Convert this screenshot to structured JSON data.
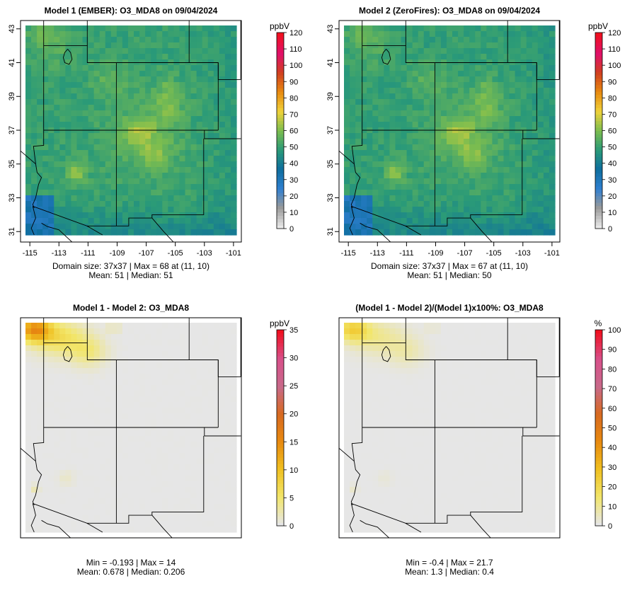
{
  "chart_data": [
    {
      "type": "heatmap",
      "title": "Model 1 (EMBER): O3_MDA8 on 09/04/2024",
      "x_ticks": [
        "-115",
        "-113",
        "-111",
        "-109",
        "-107",
        "-105",
        "-103",
        "-101"
      ],
      "y_ticks": [
        "31",
        "33",
        "35",
        "37",
        "39",
        "41",
        "43"
      ],
      "xlim": [
        -115.3,
        -100.8
      ],
      "ylim": [
        30.8,
        43.2
      ],
      "colorbar": {
        "unit": "ppbV",
        "min": 0,
        "max": 120,
        "ticks": [
          "0",
          "10",
          "20",
          "30",
          "40",
          "50",
          "60",
          "70",
          "80",
          "90",
          "100",
          "110",
          "120"
        ]
      },
      "grid": [
        37,
        37
      ],
      "stats": {
        "domain_size": "37x37",
        "max": 68,
        "max_at": "(11, 10)",
        "mean": 51,
        "median": 51
      },
      "caption_line1": "Domain size: 37x37 | Max = 68 at (11, 10)",
      "caption_line2": "Mean: 51 |  Median: 51",
      "field": "ozone"
    },
    {
      "type": "heatmap",
      "title": "Model 2 (ZeroFires): O3_MDA8 on 09/04/2024",
      "x_ticks": [
        "-115",
        "-113",
        "-111",
        "-109",
        "-107",
        "-105",
        "-103",
        "-101"
      ],
      "y_ticks": [
        "31",
        "33",
        "35",
        "37",
        "39",
        "41",
        "43"
      ],
      "xlim": [
        -115.3,
        -100.8
      ],
      "ylim": [
        30.8,
        43.2
      ],
      "colorbar": {
        "unit": "ppbV",
        "min": 0,
        "max": 120,
        "ticks": [
          "0",
          "10",
          "20",
          "30",
          "40",
          "50",
          "60",
          "70",
          "80",
          "90",
          "100",
          "110",
          "120"
        ]
      },
      "grid": [
        37,
        37
      ],
      "stats": {
        "domain_size": "37x37",
        "max": 67,
        "max_at": "(11, 10)",
        "mean": 51,
        "median": 50
      },
      "caption_line1": "Domain size: 37x37 | Max = 67 at (11, 10)",
      "caption_line2": "Mean: 51 |  Median: 50",
      "field": "ozone"
    },
    {
      "type": "heatmap",
      "title": "Model 1 - Model 2: O3_MDA8",
      "x_ticks": [],
      "y_ticks": [],
      "xlim": [
        -115.3,
        -100.8
      ],
      "ylim": [
        30.8,
        43.2
      ],
      "colorbar": {
        "unit": "ppbV",
        "min": 0,
        "max": 35,
        "ticks": [
          "0",
          "5",
          "10",
          "15",
          "20",
          "25",
          "30",
          "35"
        ]
      },
      "grid": [
        37,
        37
      ],
      "stats": {
        "min": -0.193,
        "max": 14,
        "mean": 0.678,
        "median": 0.206
      },
      "caption_line1": "Min = -0.193 | Max = 14",
      "caption_line2": "Mean: 0.678 |  Median: 0.206",
      "field": "diff"
    },
    {
      "type": "heatmap",
      "title": "(Model 1 - Model 2)/(Model 1)x100%: O3_MDA8",
      "x_ticks": [],
      "y_ticks": [],
      "xlim": [
        -115.3,
        -100.8
      ],
      "ylim": [
        30.8,
        43.2
      ],
      "colorbar": {
        "unit": "%",
        "min": 0,
        "max": 100,
        "ticks": [
          "0",
          "10",
          "20",
          "30",
          "40",
          "50",
          "60",
          "70",
          "80",
          "90",
          "100"
        ]
      },
      "grid": [
        37,
        37
      ],
      "stats": {
        "min": -0.4,
        "max": 21.7,
        "mean": 1.3,
        "median": 0.4
      },
      "caption_line1": "Min = -0.4 | Max = 21.7",
      "caption_line2": "Mean: 1.3 |  Median: 0.4",
      "field": "pct"
    }
  ],
  "colors": {
    "ozone_scale": [
      "#e8e8e8",
      "#9a9a9a",
      "#2f7fd0",
      "#0e6e9e",
      "#2a9a78",
      "#7cbd4f",
      "#f0d23a",
      "#e88a10",
      "#d04020",
      "#e0106a",
      "#f01020"
    ],
    "diff_scale": [
      "#e6e6e6",
      "#f2e66a",
      "#f0c020",
      "#e88a10",
      "#d86a20",
      "#c86a8a",
      "#d8508a",
      "#f01020"
    ]
  }
}
